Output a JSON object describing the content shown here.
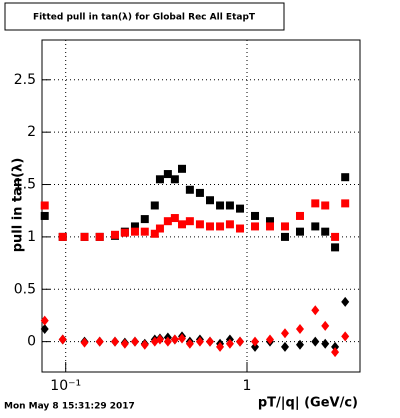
{
  "chart_data": {
    "type": "scatter",
    "title": "Fitted pull in tan(λ) for Global Rec All EtapT",
    "y_label": "pull in tan(λ)",
    "x_label": "pT/|q| (GeV/c)",
    "footer": "Mon May  8 15:31:29 2017",
    "xlog": true,
    "grid": true,
    "xlim": [
      0.074,
      4.2
    ],
    "ylim": [
      -0.29,
      2.88
    ],
    "xticks": [
      {
        "value": 0.1,
        "label": "10⁻¹"
      },
      1
    ],
    "yticks": [
      0,
      0.5,
      1,
      1.5,
      2,
      2.5
    ],
    "x": [
      0.0766,
      0.0963,
      0.127,
      0.154,
      0.187,
      0.212,
      0.241,
      0.273,
      0.31,
      0.331,
      0.366,
      0.4,
      0.438,
      0.484,
      0.55,
      0.625,
      0.71,
      0.805,
      0.915,
      1.107,
      1.339,
      1.62,
      1.96,
      2.38,
      2.7,
      3.06,
      3.48
    ],
    "series": [
      {
        "color": "#000000",
        "marker": "square",
        "values": [
          1.2,
          1.0,
          1.0,
          1.0,
          1.01,
          1.05,
          1.1,
          1.17,
          1.3,
          1.55,
          1.6,
          1.55,
          1.65,
          1.45,
          1.42,
          1.35,
          1.3,
          1.3,
          1.27,
          1.2,
          1.15,
          1.0,
          1.05,
          1.1,
          1.05,
          0.9,
          1.57
        ]
      },
      {
        "color": "#ff0000",
        "marker": "square",
        "values": [
          1.3,
          1.0,
          1.0,
          1.0,
          1.02,
          1.04,
          1.05,
          1.05,
          1.03,
          1.08,
          1.15,
          1.18,
          1.12,
          1.15,
          1.12,
          1.1,
          1.1,
          1.12,
          1.08,
          1.1,
          1.1,
          1.1,
          1.2,
          1.32,
          1.3,
          1.0,
          1.32
        ]
      },
      {
        "color": "#000000",
        "marker": "diamond",
        "values": [
          0.12,
          0.02,
          0.0,
          0.0,
          0.0,
          -0.01,
          0.0,
          -0.02,
          0.02,
          0.03,
          0.04,
          0.02,
          0.05,
          0.0,
          0.02,
          0.0,
          -0.02,
          0.02,
          0.0,
          -0.05,
          0.0,
          -0.05,
          -0.03,
          0.0,
          -0.02,
          -0.05,
          0.38
        ]
      },
      {
        "color": "#ff0000",
        "marker": "diamond",
        "values": [
          0.2,
          0.02,
          -0.01,
          0.0,
          0.0,
          -0.02,
          0.0,
          -0.03,
          0.0,
          0.02,
          0.0,
          0.02,
          0.03,
          -0.02,
          0.0,
          0.0,
          -0.05,
          -0.02,
          0.0,
          0.0,
          0.02,
          0.08,
          0.12,
          0.3,
          0.15,
          -0.1,
          0.05
        ]
      }
    ]
  }
}
